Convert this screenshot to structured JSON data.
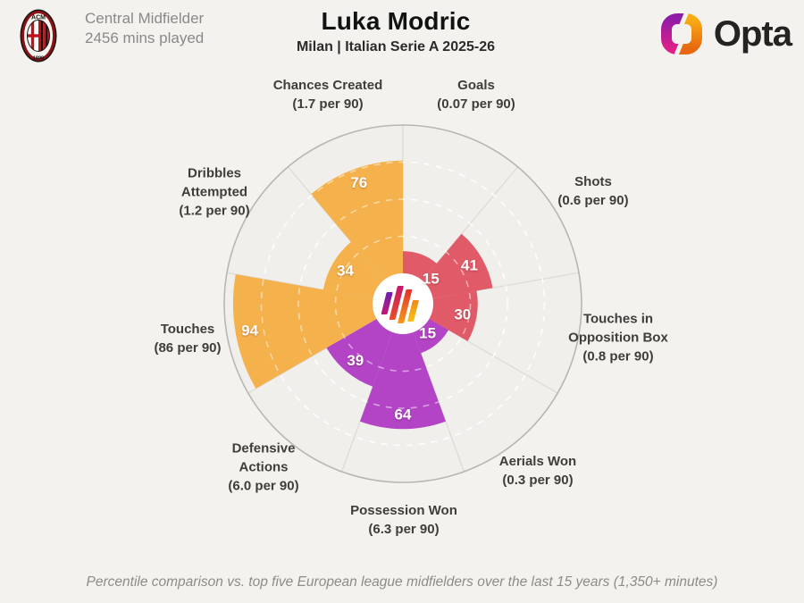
{
  "header": {
    "club_badge": "AC Milan crest",
    "position": "Central Midfielder",
    "minutes": "2456 mins played",
    "title": "Luka Modric",
    "subtitle": "Milan | Italian Serie A 2025-26",
    "brand": "Opta"
  },
  "footer": {
    "caption": "Percentile comparison vs. top five European league midfielders over the last 15 years (1,350+ minutes)"
  },
  "colors": {
    "shooting_red": "#e15a67",
    "defending_purple": "#b244c5",
    "possession_yellow": "#f5b14c",
    "background": "#f3f2ef",
    "circle_fill": "#f0efec",
    "ring_stroke": "#b8b6b2"
  },
  "chart_data": {
    "type": "polar_bar",
    "title": "Percentile pizza chart",
    "scale_min": 0,
    "scale_max": 100,
    "gridlines": [
      25,
      50,
      75
    ],
    "slice_width_deg": 40,
    "legend_position": "none",
    "categories": [
      {
        "label": "Goals",
        "per90": "(0.07 per 90)",
        "value": 15,
        "color": "#e15a67"
      },
      {
        "label": "Shots",
        "per90": "(0.6 per 90)",
        "value": 41,
        "color": "#e15a67"
      },
      {
        "label": "Touches in Opposition Box",
        "per90": "(0.8 per 90)",
        "value": 30,
        "color": "#e15a67"
      },
      {
        "label": "Aerials Won",
        "per90": "(0.3 per 90)",
        "value": 15,
        "color": "#b244c5"
      },
      {
        "label": "Possession Won",
        "per90": "(6.3 per 90)",
        "value": 64,
        "color": "#b244c5"
      },
      {
        "label": "Defensive Actions",
        "per90": "(6.0 per 90)",
        "value": 39,
        "color": "#b244c5"
      },
      {
        "label": "Touches",
        "per90": "(86 per 90)",
        "value": 94,
        "color": "#f5b14c"
      },
      {
        "label": "Dribbles Attempted",
        "per90": "(1.2 per 90)",
        "value": 34,
        "color": "#f5b14c"
      },
      {
        "label": "Chances Created",
        "per90": "(1.7 per 90)",
        "value": 76,
        "color": "#f5b14c"
      }
    ]
  }
}
